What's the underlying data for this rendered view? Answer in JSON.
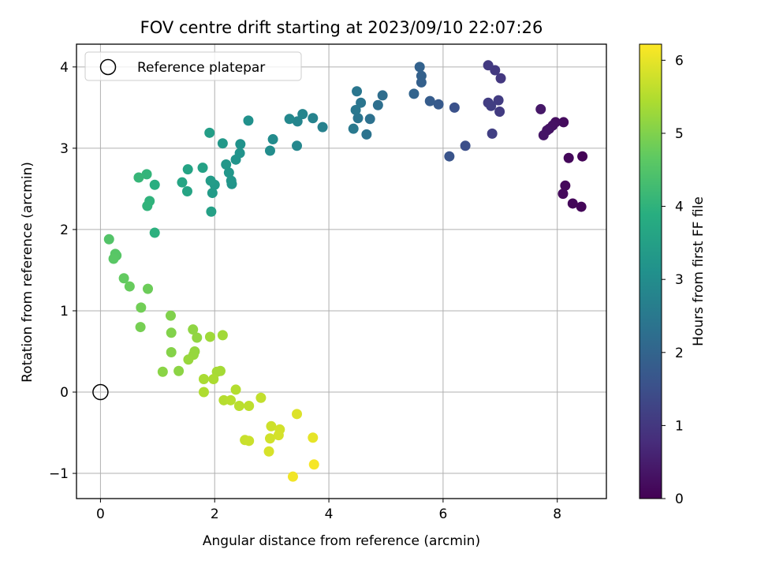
{
  "chart_data": {
    "type": "scatter",
    "title": "FOV centre drift starting at 2023/09/10 22:07:26",
    "xlabel": "Angular distance from reference (arcmin)",
    "ylabel": "Rotation from reference (arcmin)",
    "xlim": [
      -0.42,
      8.86
    ],
    "ylim": [
      -1.31,
      4.28
    ],
    "x_ticks": [
      0,
      2,
      4,
      6,
      8
    ],
    "y_ticks": [
      -1,
      0,
      1,
      2,
      3,
      4
    ],
    "grid": true,
    "legend": {
      "location": "upper-left",
      "entries": [
        "Reference platepar"
      ]
    },
    "reference_point": {
      "x": 0,
      "y": 0
    },
    "colorbar": {
      "label": "Hours from first FF file",
      "colormap": "viridis",
      "range": [
        0,
        6.22
      ],
      "ticks": [
        0,
        1,
        2,
        3,
        4,
        5,
        6
      ]
    },
    "points": [
      {
        "x": 8.44,
        "y": 2.9,
        "c": 0.05
      },
      {
        "x": 8.42,
        "y": 2.28,
        "c": 0.08
      },
      {
        "x": 8.27,
        "y": 2.32,
        "c": 0.1
      },
      {
        "x": 8.2,
        "y": 2.88,
        "c": 0.12
      },
      {
        "x": 8.14,
        "y": 2.54,
        "c": 0.14
      },
      {
        "x": 8.1,
        "y": 2.44,
        "c": 0.16
      },
      {
        "x": 8.11,
        "y": 3.32,
        "c": 0.2
      },
      {
        "x": 7.97,
        "y": 3.32,
        "c": 0.24
      },
      {
        "x": 7.92,
        "y": 3.28,
        "c": 0.28
      },
      {
        "x": 7.86,
        "y": 3.24,
        "c": 0.3
      },
      {
        "x": 7.82,
        "y": 3.22,
        "c": 0.33
      },
      {
        "x": 7.76,
        "y": 3.16,
        "c": 0.36
      },
      {
        "x": 7.71,
        "y": 3.48,
        "c": 0.4
      },
      {
        "x": 7.01,
        "y": 3.86,
        "c": 1.0
      },
      {
        "x": 6.91,
        "y": 3.96,
        "c": 1.02
      },
      {
        "x": 6.79,
        "y": 4.02,
        "c": 1.05
      },
      {
        "x": 6.99,
        "y": 3.45,
        "c": 1.08
      },
      {
        "x": 6.97,
        "y": 3.59,
        "c": 1.1
      },
      {
        "x": 6.79,
        "y": 3.56,
        "c": 1.12
      },
      {
        "x": 6.84,
        "y": 3.52,
        "c": 1.14
      },
      {
        "x": 6.86,
        "y": 3.18,
        "c": 1.16
      },
      {
        "x": 6.39,
        "y": 3.03,
        "c": 1.5
      },
      {
        "x": 6.2,
        "y": 3.5,
        "c": 1.55
      },
      {
        "x": 6.11,
        "y": 2.9,
        "c": 1.6
      },
      {
        "x": 5.92,
        "y": 3.54,
        "c": 1.75
      },
      {
        "x": 5.77,
        "y": 3.58,
        "c": 1.8
      },
      {
        "x": 5.62,
        "y": 3.81,
        "c": 1.9
      },
      {
        "x": 5.62,
        "y": 3.89,
        "c": 1.92
      },
      {
        "x": 5.59,
        "y": 4.0,
        "c": 1.95
      },
      {
        "x": 5.49,
        "y": 3.67,
        "c": 2.0
      },
      {
        "x": 4.94,
        "y": 3.65,
        "c": 2.2
      },
      {
        "x": 4.86,
        "y": 3.53,
        "c": 2.25
      },
      {
        "x": 4.72,
        "y": 3.36,
        "c": 2.3
      },
      {
        "x": 4.66,
        "y": 3.17,
        "c": 2.35
      },
      {
        "x": 4.56,
        "y": 3.56,
        "c": 2.4
      },
      {
        "x": 4.51,
        "y": 3.37,
        "c": 2.42
      },
      {
        "x": 4.49,
        "y": 3.7,
        "c": 2.44
      },
      {
        "x": 4.47,
        "y": 3.47,
        "c": 2.46
      },
      {
        "x": 4.43,
        "y": 3.24,
        "c": 2.5
      },
      {
        "x": 3.89,
        "y": 3.26,
        "c": 2.7
      },
      {
        "x": 3.72,
        "y": 3.37,
        "c": 2.75
      },
      {
        "x": 3.54,
        "y": 3.42,
        "c": 2.8
      },
      {
        "x": 3.45,
        "y": 3.33,
        "c": 2.82
      },
      {
        "x": 3.44,
        "y": 3.03,
        "c": 2.85
      },
      {
        "x": 3.31,
        "y": 3.36,
        "c": 2.88
      },
      {
        "x": 3.02,
        "y": 3.11,
        "c": 2.95
      },
      {
        "x": 2.97,
        "y": 2.97,
        "c": 3.0
      },
      {
        "x": 2.59,
        "y": 3.34,
        "c": 3.1
      },
      {
        "x": 2.45,
        "y": 3.05,
        "c": 3.15
      },
      {
        "x": 2.44,
        "y": 2.94,
        "c": 3.17
      },
      {
        "x": 2.37,
        "y": 2.86,
        "c": 3.2
      },
      {
        "x": 2.3,
        "y": 2.56,
        "c": 3.22
      },
      {
        "x": 2.29,
        "y": 2.6,
        "c": 3.24
      },
      {
        "x": 2.25,
        "y": 2.7,
        "c": 3.26
      },
      {
        "x": 2.2,
        "y": 2.8,
        "c": 3.28
      },
      {
        "x": 2.14,
        "y": 3.06,
        "c": 3.3
      },
      {
        "x": 2.0,
        "y": 2.55,
        "c": 3.35
      },
      {
        "x": 1.96,
        "y": 2.45,
        "c": 3.37
      },
      {
        "x": 1.93,
        "y": 2.6,
        "c": 3.4
      },
      {
        "x": 1.91,
        "y": 3.19,
        "c": 3.45
      },
      {
        "x": 1.94,
        "y": 2.22,
        "c": 3.5
      },
      {
        "x": 1.79,
        "y": 2.76,
        "c": 3.55
      },
      {
        "x": 1.53,
        "y": 2.74,
        "c": 3.6
      },
      {
        "x": 1.52,
        "y": 2.47,
        "c": 3.62
      },
      {
        "x": 1.43,
        "y": 2.58,
        "c": 3.65
      },
      {
        "x": 0.95,
        "y": 2.55,
        "c": 3.9
      },
      {
        "x": 0.95,
        "y": 1.96,
        "c": 3.95
      },
      {
        "x": 0.86,
        "y": 2.35,
        "c": 4.0
      },
      {
        "x": 0.82,
        "y": 2.29,
        "c": 4.02
      },
      {
        "x": 0.81,
        "y": 2.68,
        "c": 4.05
      },
      {
        "x": 0.67,
        "y": 2.64,
        "c": 4.1
      },
      {
        "x": 0.15,
        "y": 1.88,
        "c": 4.5
      },
      {
        "x": 0.28,
        "y": 1.68,
        "c": 4.55
      },
      {
        "x": 0.26,
        "y": 1.7,
        "c": 4.57
      },
      {
        "x": 0.23,
        "y": 1.64,
        "c": 4.6
      },
      {
        "x": 0.41,
        "y": 1.4,
        "c": 4.7
      },
      {
        "x": 0.51,
        "y": 1.3,
        "c": 4.75
      },
      {
        "x": 0.83,
        "y": 1.27,
        "c": 4.8
      },
      {
        "x": 0.71,
        "y": 1.04,
        "c": 4.85
      },
      {
        "x": 0.7,
        "y": 0.8,
        "c": 4.9
      },
      {
        "x": 1.23,
        "y": 0.94,
        "c": 5.0
      },
      {
        "x": 1.24,
        "y": 0.73,
        "c": 5.02
      },
      {
        "x": 1.24,
        "y": 0.49,
        "c": 5.05
      },
      {
        "x": 1.09,
        "y": 0.25,
        "c": 5.1
      },
      {
        "x": 1.37,
        "y": 0.26,
        "c": 5.12
      },
      {
        "x": 1.62,
        "y": 0.77,
        "c": 5.15
      },
      {
        "x": 1.69,
        "y": 0.67,
        "c": 5.17
      },
      {
        "x": 1.65,
        "y": 0.5,
        "c": 5.2
      },
      {
        "x": 1.63,
        "y": 0.46,
        "c": 5.22
      },
      {
        "x": 1.54,
        "y": 0.4,
        "c": 5.24
      },
      {
        "x": 1.92,
        "y": 0.68,
        "c": 5.3
      },
      {
        "x": 2.14,
        "y": 0.7,
        "c": 5.32
      },
      {
        "x": 2.1,
        "y": 0.26,
        "c": 5.35
      },
      {
        "x": 2.04,
        "y": 0.25,
        "c": 5.37
      },
      {
        "x": 1.81,
        "y": 0.16,
        "c": 5.4
      },
      {
        "x": 1.98,
        "y": 0.16,
        "c": 5.42
      },
      {
        "x": 1.81,
        "y": 0.0,
        "c": 5.45
      },
      {
        "x": 2.37,
        "y": 0.03,
        "c": 5.5
      },
      {
        "x": 2.16,
        "y": -0.1,
        "c": 5.52
      },
      {
        "x": 2.28,
        "y": -0.1,
        "c": 5.55
      },
      {
        "x": 2.43,
        "y": -0.17,
        "c": 5.57
      },
      {
        "x": 2.6,
        "y": -0.17,
        "c": 5.6
      },
      {
        "x": 2.81,
        "y": -0.07,
        "c": 5.65
      },
      {
        "x": 2.53,
        "y": -0.59,
        "c": 5.7
      },
      {
        "x": 2.6,
        "y": -0.6,
        "c": 5.72
      },
      {
        "x": 2.99,
        "y": -0.42,
        "c": 5.75
      },
      {
        "x": 2.97,
        "y": -0.57,
        "c": 5.78
      },
      {
        "x": 3.14,
        "y": -0.46,
        "c": 5.8
      },
      {
        "x": 3.12,
        "y": -0.53,
        "c": 5.82
      },
      {
        "x": 2.95,
        "y": -0.73,
        "c": 5.85
      },
      {
        "x": 3.44,
        "y": -0.27,
        "c": 5.9
      },
      {
        "x": 3.72,
        "y": -0.56,
        "c": 6.0
      },
      {
        "x": 3.37,
        "y": -1.04,
        "c": 6.1
      },
      {
        "x": 3.74,
        "y": -0.89,
        "c": 6.15
      }
    ]
  }
}
